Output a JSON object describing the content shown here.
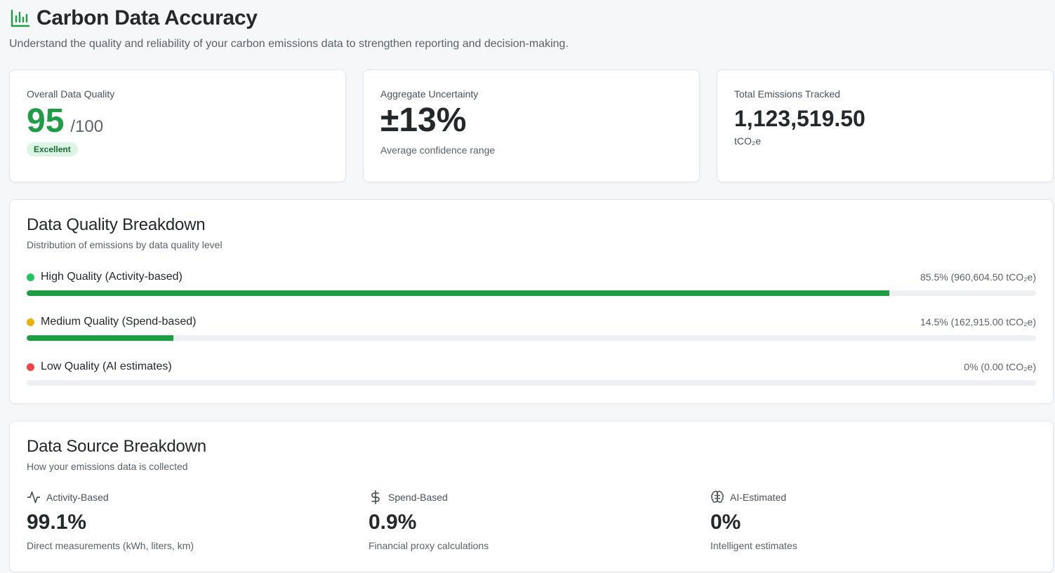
{
  "header": {
    "title": "Carbon Data Accuracy",
    "subtitle": "Understand the quality and reliability of your carbon emissions data to strengthen reporting and decision-making.",
    "icon": "bar-chart-icon"
  },
  "stats": {
    "quality": {
      "label": "Overall Data Quality",
      "score": "95",
      "max": "/100",
      "badge": "Excellent"
    },
    "uncertainty": {
      "label": "Aggregate Uncertainty",
      "value": "±13%",
      "caption": "Average confidence range"
    },
    "emissions": {
      "label": "Total Emissions Tracked",
      "value": "1,123,519.50",
      "unit": "tCO₂e"
    }
  },
  "quality_breakdown": {
    "title": "Data Quality Breakdown",
    "description": "Distribution of emissions by data quality level",
    "rows": [
      {
        "label": "High Quality (Activity-based)",
        "value": "85.5% (960,604.50 tCO₂e)",
        "percent": 85.5,
        "dot_color": "#22c55e"
      },
      {
        "label": "Medium Quality (Spend-based)",
        "value": "14.5% (162,915.00 tCO₂e)",
        "percent": 14.5,
        "dot_color": "#eab308"
      },
      {
        "label": "Low Quality (AI estimates)",
        "value": "0% (0.00 tCO₂e)",
        "percent": 0,
        "dot_color": "#ef4444"
      }
    ],
    "bar_color": "#1f9d46"
  },
  "source_breakdown": {
    "title": "Data Source Breakdown",
    "description": "How your emissions data is collected",
    "items": [
      {
        "label": "Activity-Based",
        "value": "99.1%",
        "caption": "Direct measurements (kWh, liters, km)",
        "icon": "activity-icon"
      },
      {
        "label": "Spend-Based",
        "value": "0.9%",
        "caption": "Financial proxy calculations",
        "icon": "dollar-icon"
      },
      {
        "label": "AI-Estimated",
        "value": "0%",
        "caption": "Intelligent estimates",
        "icon": "brain-icon"
      }
    ]
  }
}
